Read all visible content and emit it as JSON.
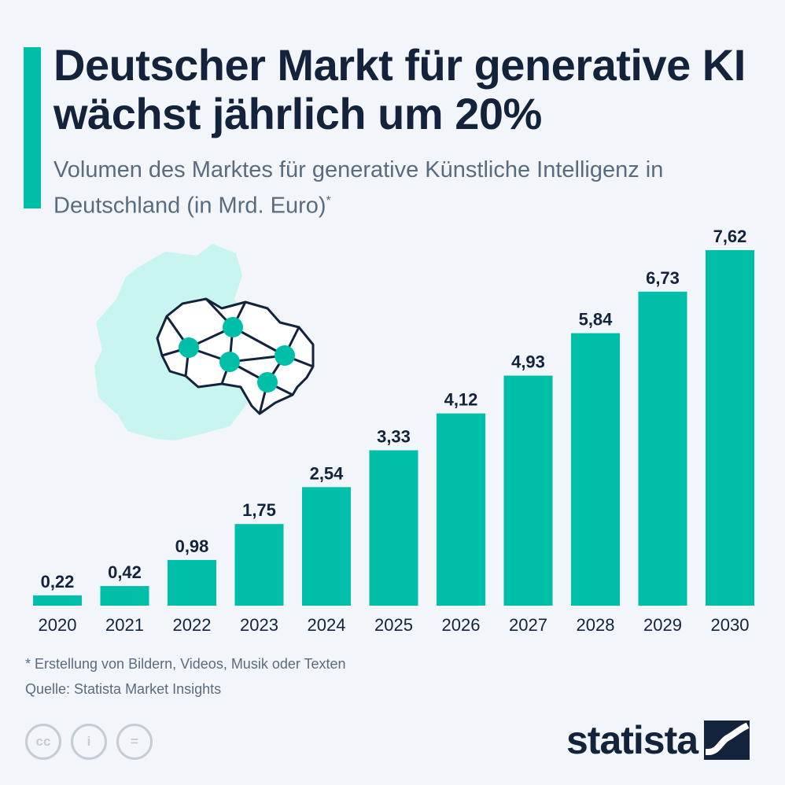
{
  "header": {
    "title": "Deutscher Markt für generative KI wächst jährlich um 20%",
    "subtitle": "Volumen des Marktes für generative Künstliche Intelligenz in Deutschland (in Mrd. Euro)",
    "subtitle_marker": "*"
  },
  "illustration": {
    "icon": "germany-map-brain-network-icon"
  },
  "chart_data": {
    "type": "bar",
    "categories": [
      "2020",
      "2021",
      "2022",
      "2023",
      "2024",
      "2025",
      "2026",
      "2027",
      "2028",
      "2029",
      "2030"
    ],
    "values": [
      0.22,
      0.42,
      0.98,
      1.75,
      2.54,
      3.33,
      4.12,
      4.93,
      5.84,
      6.73,
      7.62
    ],
    "value_labels": [
      "0,22",
      "0,42",
      "0,98",
      "1,75",
      "2,54",
      "3,33",
      "4,12",
      "4,93",
      "5,84",
      "6,73",
      "7,62"
    ],
    "ylim": [
      0,
      7.62
    ],
    "grid": false,
    "bar_color": "#00bfa8"
  },
  "footer": {
    "footnote": "* Erstellung von Bildern, Videos, Musik oder Texten",
    "source": "Quelle: Statista Market Insights",
    "license_icons": [
      "cc-icon",
      "attribution-icon",
      "no-derivatives-icon"
    ],
    "license_labels": [
      "cc",
      "i",
      "="
    ],
    "logo": "statista"
  },
  "colors": {
    "accent": "#00bfa8",
    "title": "#14233c",
    "subtitle": "#5b6b7e",
    "background": "#f2f6fa",
    "map": "#c8f5f0"
  }
}
